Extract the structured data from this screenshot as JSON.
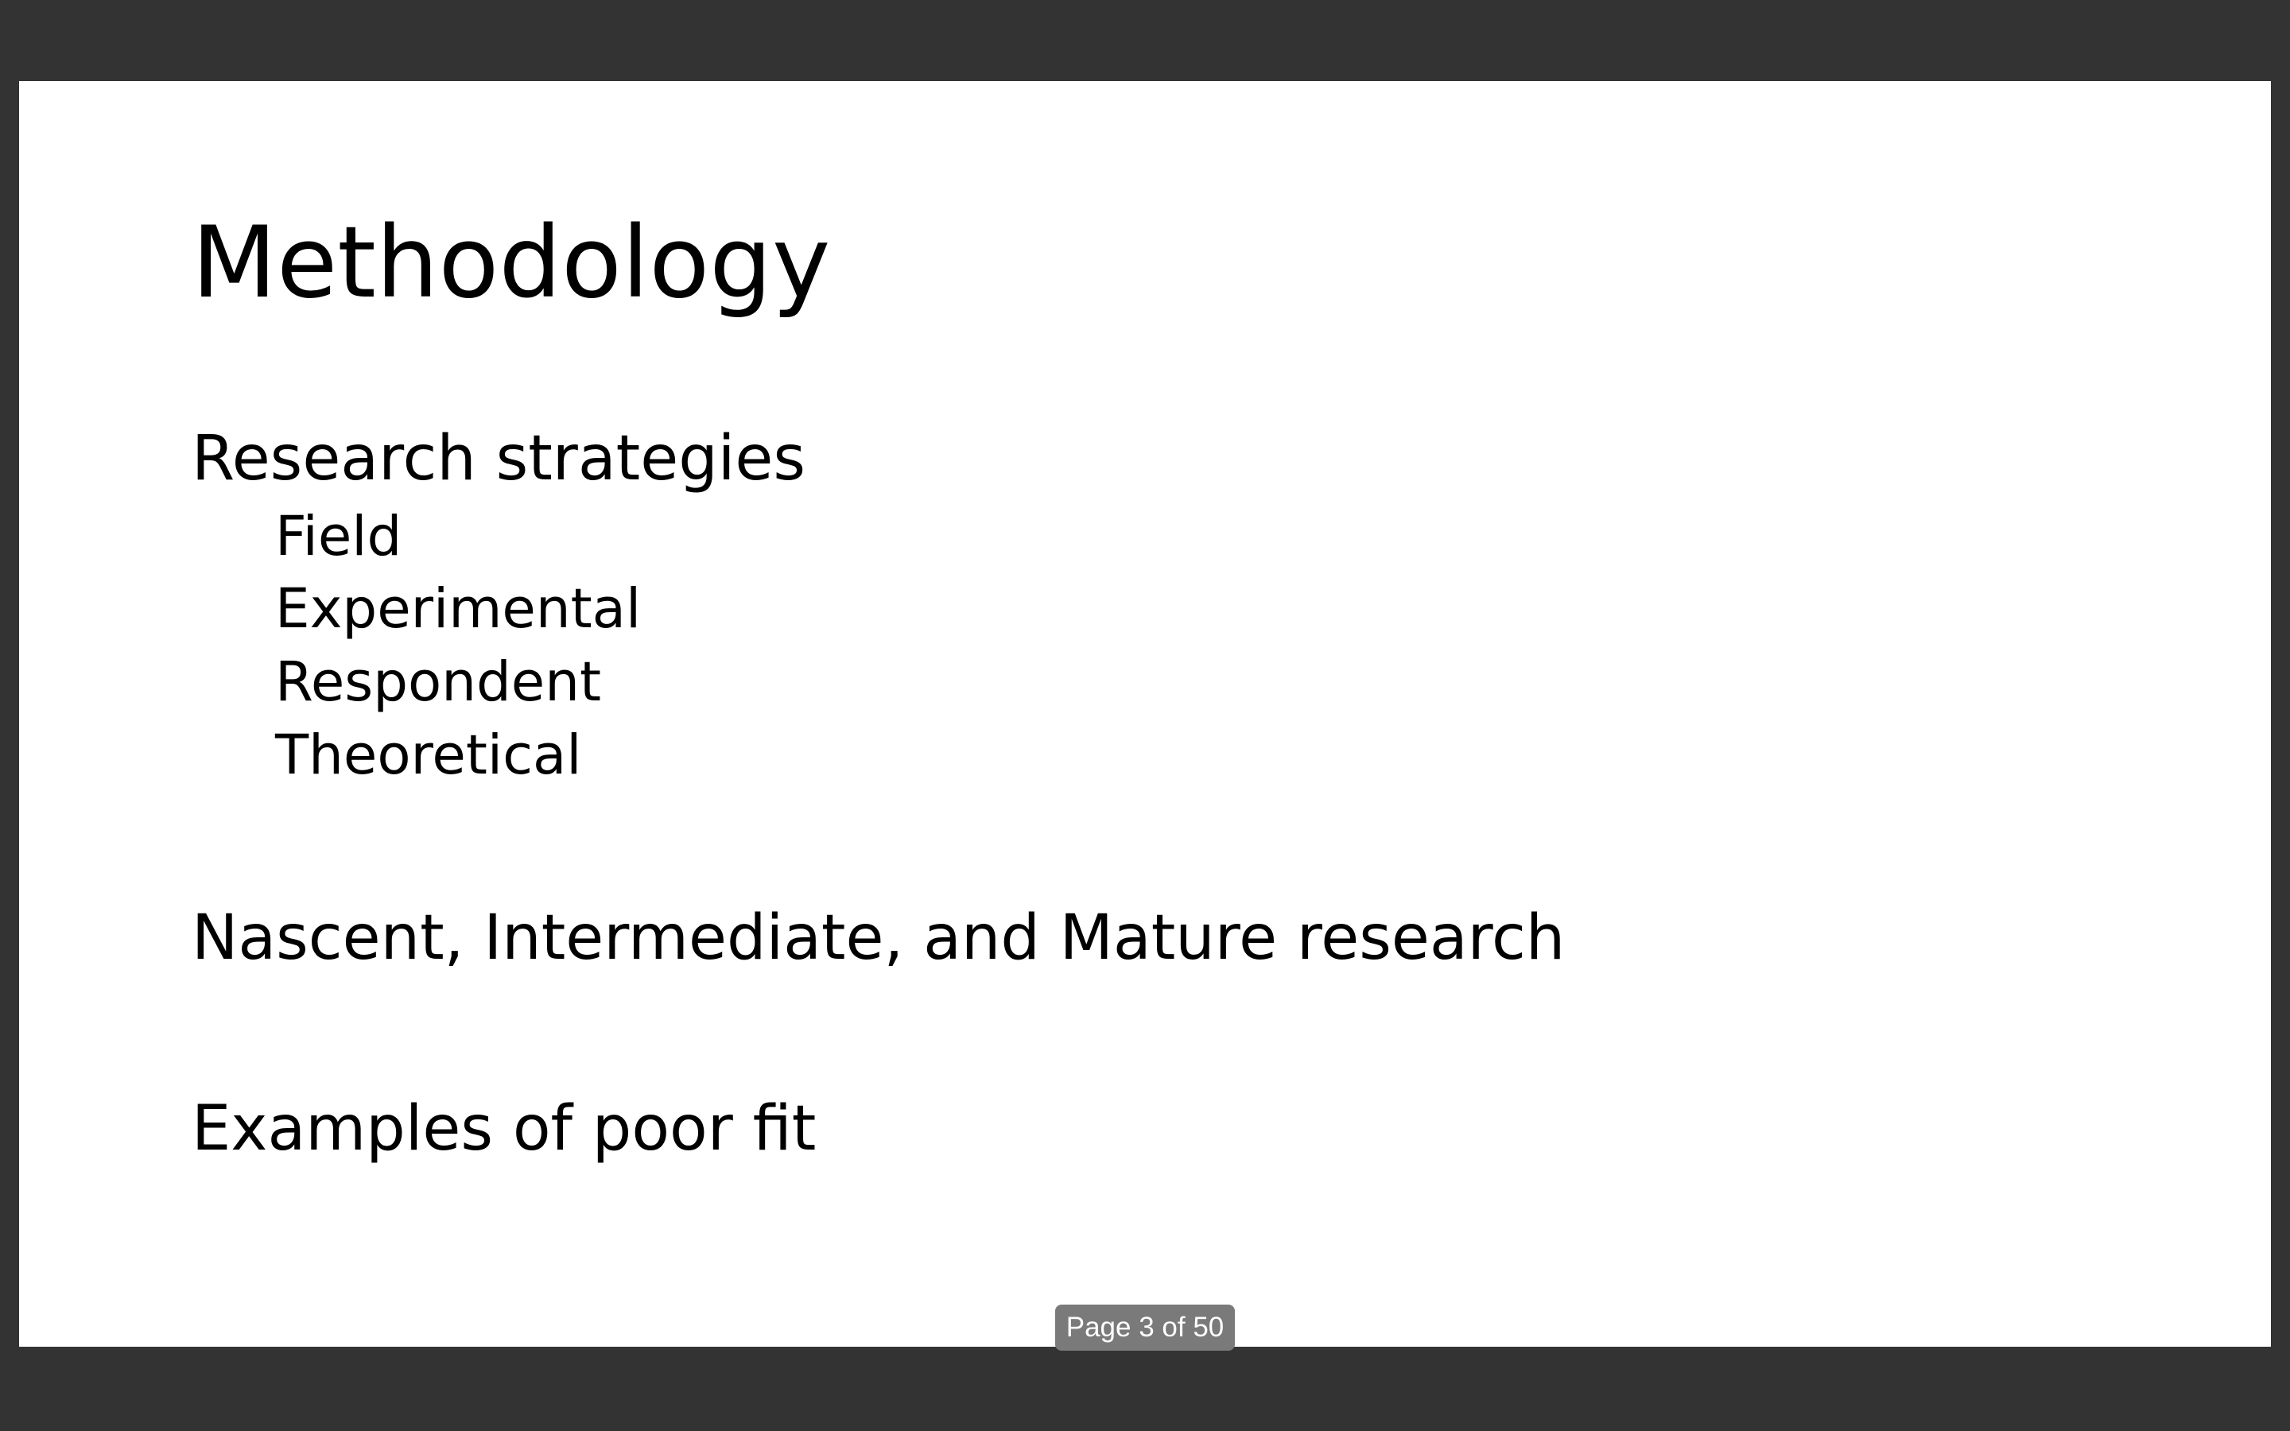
{
  "slide": {
    "title": "Methodology",
    "bullets": [
      {
        "text": "Research strategies",
        "sub_items": [
          "Field",
          "Experimental",
          "Respondent",
          "Theoretical"
        ]
      },
      {
        "text": "Nascent, Intermediate, and Mature research"
      },
      {
        "text": "Examples of poor fit"
      }
    ]
  },
  "page_indicator": {
    "label": "Page 3 of 50",
    "current_page": 3,
    "total_pages": 50
  },
  "colors": {
    "viewer_background": "#333333",
    "slide_background": "#ffffff",
    "text": "#000000",
    "indicator_background": "#7a7a7a",
    "indicator_text": "#ffffff"
  }
}
